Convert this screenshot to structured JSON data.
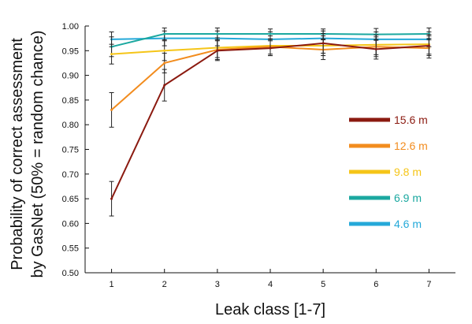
{
  "chart_data": {
    "type": "line",
    "xlabel": "Leak class [1-7]",
    "ylabel_lines": [
      "Probability of correct assessment",
      "by GasNet (50% = random chance)"
    ],
    "x": [
      1,
      2,
      3,
      4,
      5,
      6,
      7
    ],
    "x_tick_labels": [
      "1",
      "2",
      "3",
      "4",
      "5",
      "6",
      "7"
    ],
    "y_tick_labels": [
      "0.50",
      "0.55",
      "0.60",
      "0.65",
      "0.70",
      "0.75",
      "0.80",
      "0.85",
      "0.90",
      "0.95",
      "1.00"
    ],
    "ylim": [
      0.5,
      1.0
    ],
    "grid": false,
    "legend_position": "right",
    "series": [
      {
        "name": "15.6 m",
        "color": "#8B1A10",
        "values": [
          0.65,
          0.88,
          0.95,
          0.955,
          0.965,
          0.953,
          0.96
        ],
        "err": [
          0.035,
          0.032,
          0.02,
          0.015,
          0.02,
          0.02,
          0.02
        ]
      },
      {
        "name": "12.6 m",
        "color": "#F28C1E",
        "values": [
          0.83,
          0.925,
          0.952,
          0.958,
          0.952,
          0.958,
          0.955
        ],
        "err": [
          0.035,
          0.02,
          0.02,
          0.015,
          0.02,
          0.02,
          0.02
        ]
      },
      {
        "name": "9.8 m",
        "color": "#F5C518",
        "values": [
          0.943,
          0.95,
          0.956,
          0.96,
          0.96,
          0.962,
          0.963
        ],
        "err": [
          0.02,
          0.02,
          0.02,
          0.02,
          0.02,
          0.02,
          0.02
        ]
      },
      {
        "name": "6.9 m",
        "color": "#1BA8A0",
        "values": [
          0.958,
          0.984,
          0.984,
          0.984,
          0.984,
          0.983,
          0.984
        ],
        "err": [
          0.02,
          0.012,
          0.012,
          0.01,
          0.01,
          0.012,
          0.012
        ]
      },
      {
        "name": "4.6 m",
        "color": "#25A9D9",
        "values": [
          0.973,
          0.975,
          0.975,
          0.973,
          0.975,
          0.973,
          0.973
        ],
        "err": [
          0.015,
          0.015,
          0.015,
          0.015,
          0.015,
          0.015,
          0.015
        ]
      }
    ]
  }
}
